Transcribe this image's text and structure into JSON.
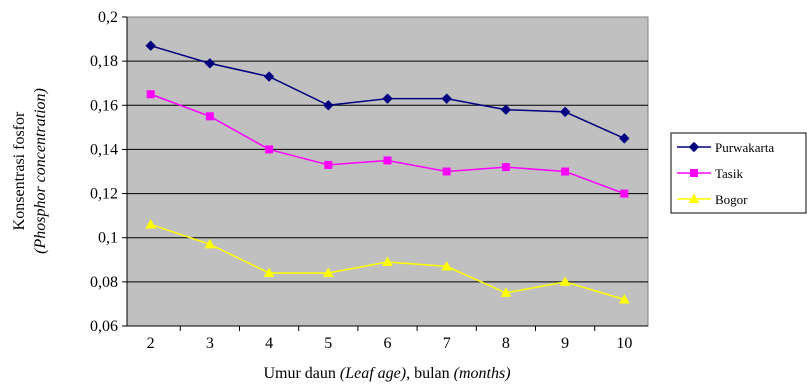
{
  "chart_data": {
    "type": "line",
    "categories": [
      "2",
      "3",
      "4",
      "5",
      "6",
      "7",
      "8",
      "9",
      "10"
    ],
    "x": [
      2,
      3,
      4,
      5,
      6,
      7,
      8,
      9,
      10
    ],
    "series": [
      {
        "name": "Purwakarta",
        "values": [
          0.187,
          0.179,
          0.173,
          0.16,
          0.163,
          0.163,
          0.158,
          0.157,
          0.145
        ],
        "color": "#000080",
        "marker": "diamond"
      },
      {
        "name": "Tasik",
        "values": [
          0.165,
          0.155,
          0.14,
          0.133,
          0.135,
          0.13,
          0.132,
          0.13,
          0.12
        ],
        "color": "#FF00FF",
        "marker": "square"
      },
      {
        "name": "Bogor",
        "values": [
          0.106,
          0.097,
          0.084,
          0.084,
          0.089,
          0.087,
          0.075,
          0.08,
          0.072
        ],
        "color": "#FFFF00",
        "marker": "triangle"
      }
    ],
    "yticks": [
      "0,06",
      "0,08",
      "0,1",
      "0,12",
      "0,14",
      "0,16",
      "0,18",
      "0,2"
    ],
    "ytick_values": [
      0.06,
      0.08,
      0.1,
      0.12,
      0.14,
      0.16,
      0.18,
      0.2
    ],
    "ylim": [
      0.06,
      0.2
    ],
    "xlim": [
      1.6,
      10.4
    ],
    "ylabel": {
      "line1": "Konsentrasi fosfor",
      "line2": "(Phosphor concentration)"
    },
    "xlabel": {
      "part1": "Umur daun ",
      "part2": "(Leaf age)",
      "part3": ", bulan ",
      "part4": "(months)"
    },
    "grid": "horizontal",
    "legend_position": "right",
    "plot_background": "#C0C0C0"
  }
}
